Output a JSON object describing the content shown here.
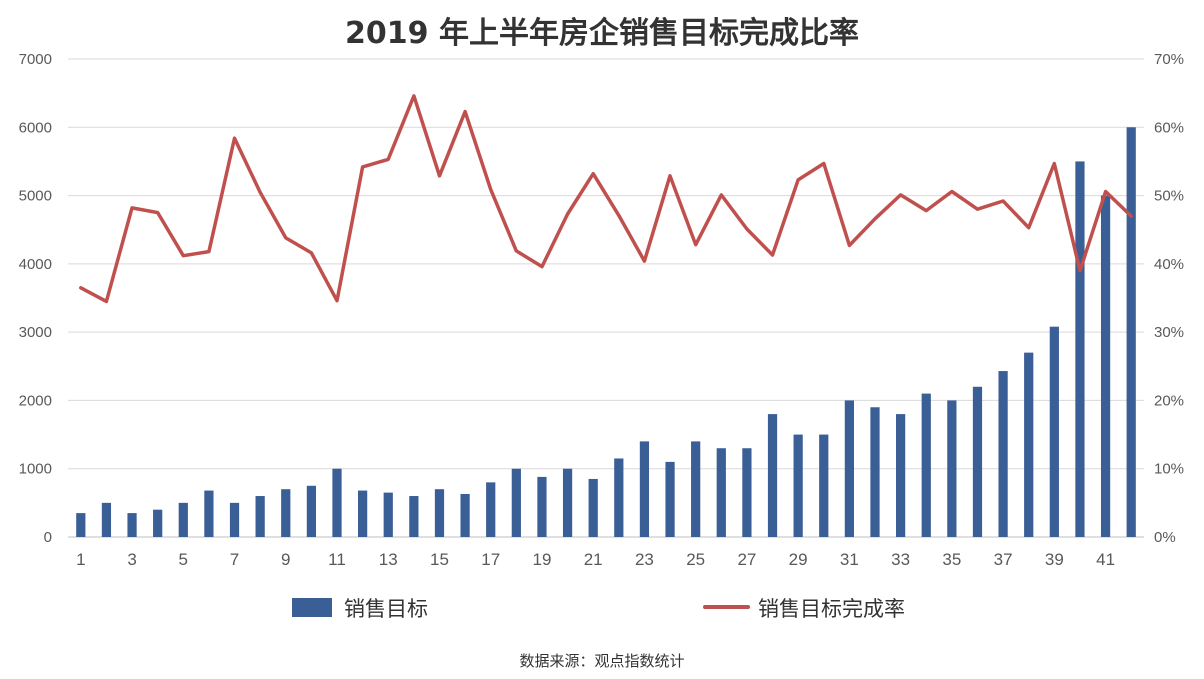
{
  "chart_data": {
    "type": "bar+line",
    "title": "2019 年上半年房企销售目标完成比率",
    "source": "数据来源：观点指数统计",
    "x": [
      1,
      2,
      3,
      4,
      5,
      6,
      7,
      8,
      9,
      10,
      11,
      12,
      13,
      14,
      15,
      16,
      17,
      18,
      19,
      20,
      21,
      22,
      23,
      24,
      25,
      26,
      27,
      28,
      29,
      30,
      31,
      32,
      33,
      34,
      35,
      36,
      37,
      38,
      39,
      40,
      41,
      42
    ],
    "x_tick_labels": [
      "1",
      "3",
      "5",
      "7",
      "9",
      "11",
      "13",
      "15",
      "17",
      "19",
      "21",
      "23",
      "25",
      "27",
      "29",
      "31",
      "33",
      "35",
      "37",
      "39",
      "41"
    ],
    "y_left": {
      "min": 0,
      "max": 7000,
      "ticks": [
        0,
        1000,
        2000,
        3000,
        4000,
        5000,
        6000,
        7000
      ]
    },
    "y_right": {
      "min": 0,
      "max": 70,
      "unit": "%",
      "ticks": [
        0,
        10,
        20,
        30,
        40,
        50,
        60,
        70
      ]
    },
    "series": [
      {
        "name": "销售目标",
        "kind": "bar",
        "axis": "left",
        "color": "#3a5e96",
        "values": [
          350,
          500,
          350,
          400,
          500,
          680,
          500,
          600,
          700,
          750,
          1000,
          680,
          650,
          600,
          700,
          630,
          800,
          1000,
          880,
          1000,
          850,
          1150,
          1400,
          1100,
          1400,
          1300,
          1300,
          1800,
          1500,
          1500,
          2000,
          1900,
          1800,
          2100,
          2000,
          2200,
          2430,
          2700,
          3080,
          5500,
          5000,
          6000
        ]
      },
      {
        "name": "销售目标完成率",
        "kind": "line",
        "axis": "right",
        "color": "#c0504d",
        "values": [
          36.5,
          34.5,
          48.2,
          47.5,
          41.2,
          41.8,
          58.4,
          50.5,
          43.8,
          41.6,
          34.6,
          54.2,
          55.3,
          64.6,
          52.9,
          62.3,
          50.9,
          41.9,
          39.6,
          47.3,
          53.2,
          47.1,
          40.4,
          52.9,
          42.8,
          50.1,
          45.1,
          41.3,
          52.3,
          54.7,
          42.7,
          46.6,
          50.1,
          47.8,
          50.6,
          48.0,
          49.2,
          45.3,
          54.7,
          39.0,
          50.6,
          47.0
        ]
      }
    ],
    "legend": {
      "position": "bottom"
    },
    "grid": true
  }
}
